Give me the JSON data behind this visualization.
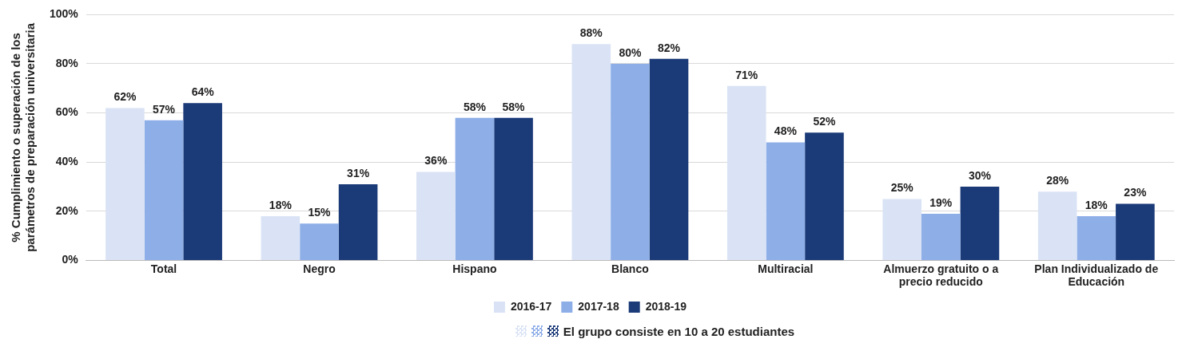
{
  "chart_data": {
    "type": "bar",
    "ylabel": "% Cumplimiento o superación de los parámetros de preparación universitaria",
    "categories": [
      "Total",
      "Negro",
      "Hispano",
      "Blanco",
      "Multiracial",
      "Almuerzo gratuito o a precio reducido",
      "Plan Individualizado de Educación"
    ],
    "series": [
      {
        "name": "2016-17",
        "color": "#dae3f5",
        "values": [
          62,
          18,
          36,
          88,
          71,
          25,
          28
        ]
      },
      {
        "name": "2017-18",
        "color": "#8eaee8",
        "values": [
          57,
          15,
          58,
          80,
          48,
          19,
          18
        ]
      },
      {
        "name": "2018-19",
        "color": "#1b3a78",
        "values": [
          64,
          31,
          58,
          82,
          52,
          30,
          23
        ]
      }
    ],
    "ylim": [
      0,
      100
    ],
    "yticks": [
      {
        "value": 0,
        "label": "0%"
      },
      {
        "value": 20,
        "label": "20%"
      },
      {
        "value": 40,
        "label": "40%"
      },
      {
        "value": 60,
        "label": "60%"
      },
      {
        "value": 80,
        "label": "80%"
      },
      {
        "value": 100,
        "label": "100%"
      }
    ],
    "value_labels": [
      [
        "62%",
        "18%",
        "36%",
        "88%",
        "71%",
        "25%",
        "28%"
      ],
      [
        "57%",
        "15%",
        "58%",
        "80%",
        "48%",
        "19%",
        "18%"
      ],
      [
        "64%",
        "31%",
        "58%",
        "82%",
        "52%",
        "30%",
        "23%"
      ]
    ],
    "grid": "y",
    "legend": "bottom",
    "annotations": [
      "El grupo consiste en 10 a 20 estudiantes"
    ]
  }
}
